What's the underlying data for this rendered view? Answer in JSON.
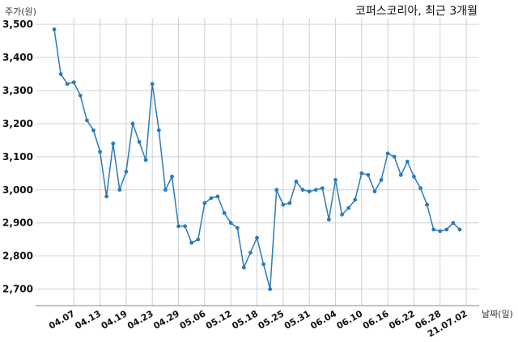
{
  "chart_data": {
    "type": "line",
    "title": "코퍼스코리아, 최근 3개월",
    "ylabel": "주가(원)",
    "xlabel": "날짜(일)",
    "ylim": [
      2650,
      3520
    ],
    "grid": true,
    "line_color": "#2b7bb9",
    "y_ticks": [
      2700,
      2800,
      2900,
      3000,
      3100,
      3200,
      3300,
      3400,
      3500
    ],
    "y_tick_labels": [
      "2,700",
      "2,800",
      "2,900",
      "3,000",
      "3,100",
      "3,200",
      "3,300",
      "3,400",
      "3,500"
    ],
    "x_tick_labels": [
      "04.07",
      "04.13",
      "04.19",
      "04.23",
      "04.29",
      "05.06",
      "05.12",
      "05.18",
      "05.25",
      "05.31",
      "06.04",
      "06.10",
      "06.16",
      "06.22",
      "06.28",
      "21.07.02"
    ],
    "x_tick_positions": [
      3,
      7,
      11,
      15,
      19,
      23,
      27,
      31,
      35,
      39,
      43,
      47,
      51,
      55,
      59,
      63
    ],
    "values": [
      3485,
      3350,
      3320,
      3325,
      3285,
      3210,
      3180,
      3115,
      2980,
      3140,
      3000,
      3055,
      3200,
      3145,
      3090,
      3320,
      3180,
      3000,
      3040,
      2890,
      2890,
      2840,
      2850,
      2960,
      2975,
      2980,
      2930,
      2900,
      2885,
      2765,
      2810,
      2855,
      2775,
      2700,
      3000,
      2955,
      2960,
      3025,
      3000,
      2995,
      3000,
      3005,
      2910,
      3030,
      2925,
      2945,
      2970,
      3050,
      3045,
      2995,
      3030,
      3110,
      3100,
      3045,
      3085,
      3040,
      3005,
      2955,
      2880,
      2875,
      2880,
      2900,
      2880
    ]
  }
}
